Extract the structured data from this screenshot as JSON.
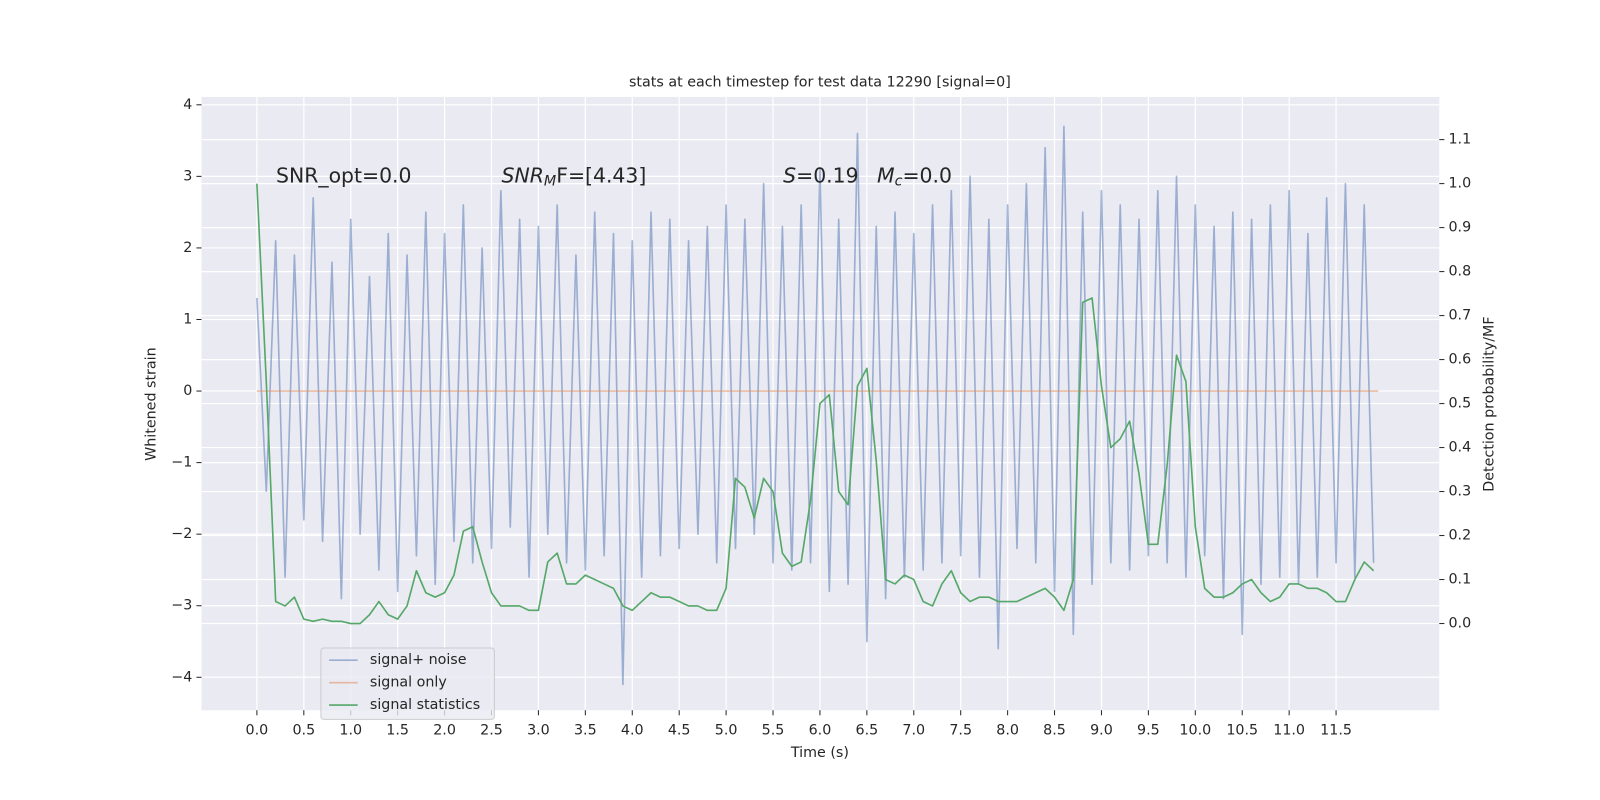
{
  "chart_data": {
    "type": "line",
    "title": "stats at each timestep for test data 12290 [signal=0]",
    "xlabel": "Time (s)",
    "ylabel": "Whitened strain",
    "y2label": "Detection probability/MF",
    "x": [
      0,
      0.1,
      0.2,
      0.3,
      0.4,
      0.5,
      0.6,
      0.7,
      0.8,
      0.9,
      1,
      1.1,
      1.2,
      1.3,
      1.4,
      1.5,
      1.6,
      1.7,
      1.8,
      1.9,
      2,
      2.1,
      2.2,
      2.3,
      2.4,
      2.5,
      2.6,
      2.7,
      2.8,
      2.9,
      3,
      3.1,
      3.2,
      3.3,
      3.4,
      3.5,
      3.6,
      3.7,
      3.8,
      3.9,
      4,
      4.1,
      4.2,
      4.3,
      4.4,
      4.5,
      4.6,
      4.7,
      4.8,
      4.9,
      5,
      5.1,
      5.2,
      5.3,
      5.4,
      5.5,
      5.6,
      5.7,
      5.8,
      5.9,
      6,
      6.1,
      6.2,
      6.3,
      6.4,
      6.5,
      6.6,
      6.7,
      6.8,
      6.9,
      7,
      7.1,
      7.2,
      7.3,
      7.4,
      7.5,
      7.6,
      7.7,
      7.8,
      7.9,
      8,
      8.1,
      8.2,
      8.3,
      8.4,
      8.5,
      8.6,
      8.7,
      8.8,
      8.9,
      9,
      9.1,
      9.2,
      9.3,
      9.4,
      9.5,
      9.6,
      9.7,
      9.8,
      9.9,
      10,
      10.1,
      10.2,
      10.3,
      10.4,
      10.5,
      10.6,
      10.7,
      10.8,
      10.9,
      11,
      11.1,
      11.2,
      11.3,
      11.4,
      11.5,
      11.6,
      11.7,
      11.8,
      11.9
    ],
    "series": [
      {
        "name": "signal+ noise",
        "color": "#4c72b0",
        "opacity": 0.5,
        "values": [
          1.3,
          -1.4,
          2.1,
          -2.6,
          1.9,
          -1.8,
          2.7,
          -2.1,
          1.8,
          -2.9,
          2.4,
          -2.0,
          1.6,
          -2.5,
          2.2,
          -2.8,
          1.9,
          -2.3,
          2.5,
          -2.7,
          2.2,
          -2.1,
          2.6,
          -2.4,
          2.0,
          -2.2,
          2.8,
          -1.9,
          2.4,
          -2.6,
          2.3,
          -2.0,
          2.6,
          -2.4,
          1.9,
          -2.5,
          2.5,
          -2.3,
          2.2,
          -4.1,
          2.1,
          -2.6,
          2.5,
          -2.3,
          2.4,
          -2.2,
          2.1,
          -2.0,
          2.3,
          -2.4,
          2.6,
          -2.2,
          2.4,
          -2.0,
          2.9,
          -2.4,
          2.3,
          -2.5,
          2.6,
          -2.4,
          3.1,
          -2.8,
          2.4,
          -2.7,
          3.6,
          -3.5,
          2.3,
          -2.9,
          2.5,
          -2.6,
          2.2,
          -2.5,
          2.6,
          -2.4,
          2.8,
          -2.3,
          3.0,
          -2.6,
          2.4,
          -3.6,
          2.6,
          -2.2,
          2.9,
          -2.4,
          3.4,
          -2.8,
          3.7,
          -3.4,
          2.5,
          -2.7,
          2.8,
          -2.4,
          2.6,
          -2.5,
          2.4,
          -2.3,
          2.8,
          -2.4,
          3.0,
          -2.6,
          2.6,
          -2.3,
          2.3,
          -2.9,
          2.5,
          -3.4,
          2.4,
          -2.7,
          2.6,
          -2.6,
          2.8,
          -2.7,
          2.2,
          -2.6,
          2.7,
          -2.4,
          2.9,
          -2.6,
          2.6,
          -2.4
        ]
      },
      {
        "name": "signal only",
        "color": "#dd8452",
        "opacity": 0.5,
        "x": [
          0,
          11.95
        ],
        "values": [
          0,
          0
        ]
      },
      {
        "name": "signal statistics",
        "color": "#55a868",
        "opacity": 1,
        "axis": "y2",
        "values": [
          1.0,
          0.55,
          0.05,
          0.04,
          0.06,
          0.01,
          0.005,
          0.01,
          0.005,
          0.005,
          0.0,
          0.0,
          0.02,
          0.05,
          0.02,
          0.01,
          0.04,
          0.12,
          0.07,
          0.06,
          0.07,
          0.11,
          0.21,
          0.22,
          0.14,
          0.07,
          0.04,
          0.04,
          0.04,
          0.03,
          0.03,
          0.14,
          0.16,
          0.09,
          0.09,
          0.11,
          0.1,
          0.09,
          0.08,
          0.04,
          0.03,
          0.05,
          0.07,
          0.06,
          0.06,
          0.05,
          0.04,
          0.04,
          0.03,
          0.03,
          0.08,
          0.33,
          0.31,
          0.24,
          0.33,
          0.3,
          0.16,
          0.13,
          0.14,
          0.28,
          0.5,
          0.52,
          0.3,
          0.27,
          0.54,
          0.58,
          0.37,
          0.1,
          0.09,
          0.11,
          0.1,
          0.05,
          0.04,
          0.09,
          0.12,
          0.07,
          0.05,
          0.06,
          0.06,
          0.05,
          0.05,
          0.05,
          0.06,
          0.07,
          0.08,
          0.06,
          0.03,
          0.1,
          0.73,
          0.74,
          0.54,
          0.4,
          0.42,
          0.46,
          0.34,
          0.18,
          0.18,
          0.36,
          0.61,
          0.55,
          0.22,
          0.08,
          0.06,
          0.06,
          0.07,
          0.09,
          0.1,
          0.07,
          0.05,
          0.06,
          0.09,
          0.09,
          0.08,
          0.08,
          0.07,
          0.05,
          0.05,
          0.1,
          0.14,
          0.12
        ]
      }
    ],
    "xlim": [
      -0.59,
      12.6
    ],
    "xticks": [
      {
        "value": 0,
        "label": "0.0"
      },
      0.5,
      {
        "value": 1,
        "label": "1.0"
      },
      1.5,
      {
        "value": 2,
        "label": "2.0"
      },
      2.5,
      {
        "value": 3,
        "label": "3.0"
      },
      3.5,
      {
        "value": 4,
        "label": "4.0"
      },
      4.5,
      {
        "value": 5,
        "label": "5.0"
      },
      5.5,
      {
        "value": 6,
        "label": "6.0"
      },
      6.5,
      {
        "value": 7,
        "label": "7.0"
      },
      7.5,
      {
        "value": 8,
        "label": "8.0"
      },
      8.5,
      {
        "value": 9,
        "label": "9.0"
      },
      9.5,
      {
        "value": 10,
        "label": "10.0"
      },
      10.5,
      {
        "value": 11,
        "label": "11.0"
      },
      11.5
    ],
    "ylim": [
      -4.46,
      4.11
    ],
    "yticks": [
      {
        "value": -4,
        "label": "−4"
      },
      {
        "value": -3,
        "label": "−3"
      },
      {
        "value": -2,
        "label": "−2"
      },
      {
        "value": -1,
        "label": "−1"
      },
      0,
      1,
      2,
      3,
      4
    ],
    "y2lim": [
      -0.197,
      1.197
    ],
    "y2ticks": [
      {
        "value": 0,
        "label": "0.0"
      },
      0.1,
      0.2,
      0.3,
      0.4,
      0.5,
      0.6,
      0.7,
      0.8,
      0.9,
      {
        "value": 1,
        "label": "1.0"
      },
      1.1
    ],
    "grid": true,
    "legend_position": "lower left",
    "annotations": [
      {
        "segments": [
          {
            "text": "SNR_opt=0.0"
          }
        ]
      },
      {
        "segments": [
          {
            "text": "SNR",
            "style": "italic"
          },
          {
            "text": "M",
            "style": "sub-italic"
          },
          {
            "text": "F=[4.43]"
          }
        ]
      },
      {
        "segments": [
          {
            "text": "S",
            "style": "italic"
          },
          {
            "text": "=0.19"
          }
        ]
      },
      {
        "segments": [
          {
            "text": "M",
            "style": "italic"
          },
          {
            "text": "c",
            "style": "sub-italic"
          },
          {
            "text": "=0.0"
          }
        ]
      }
    ]
  }
}
